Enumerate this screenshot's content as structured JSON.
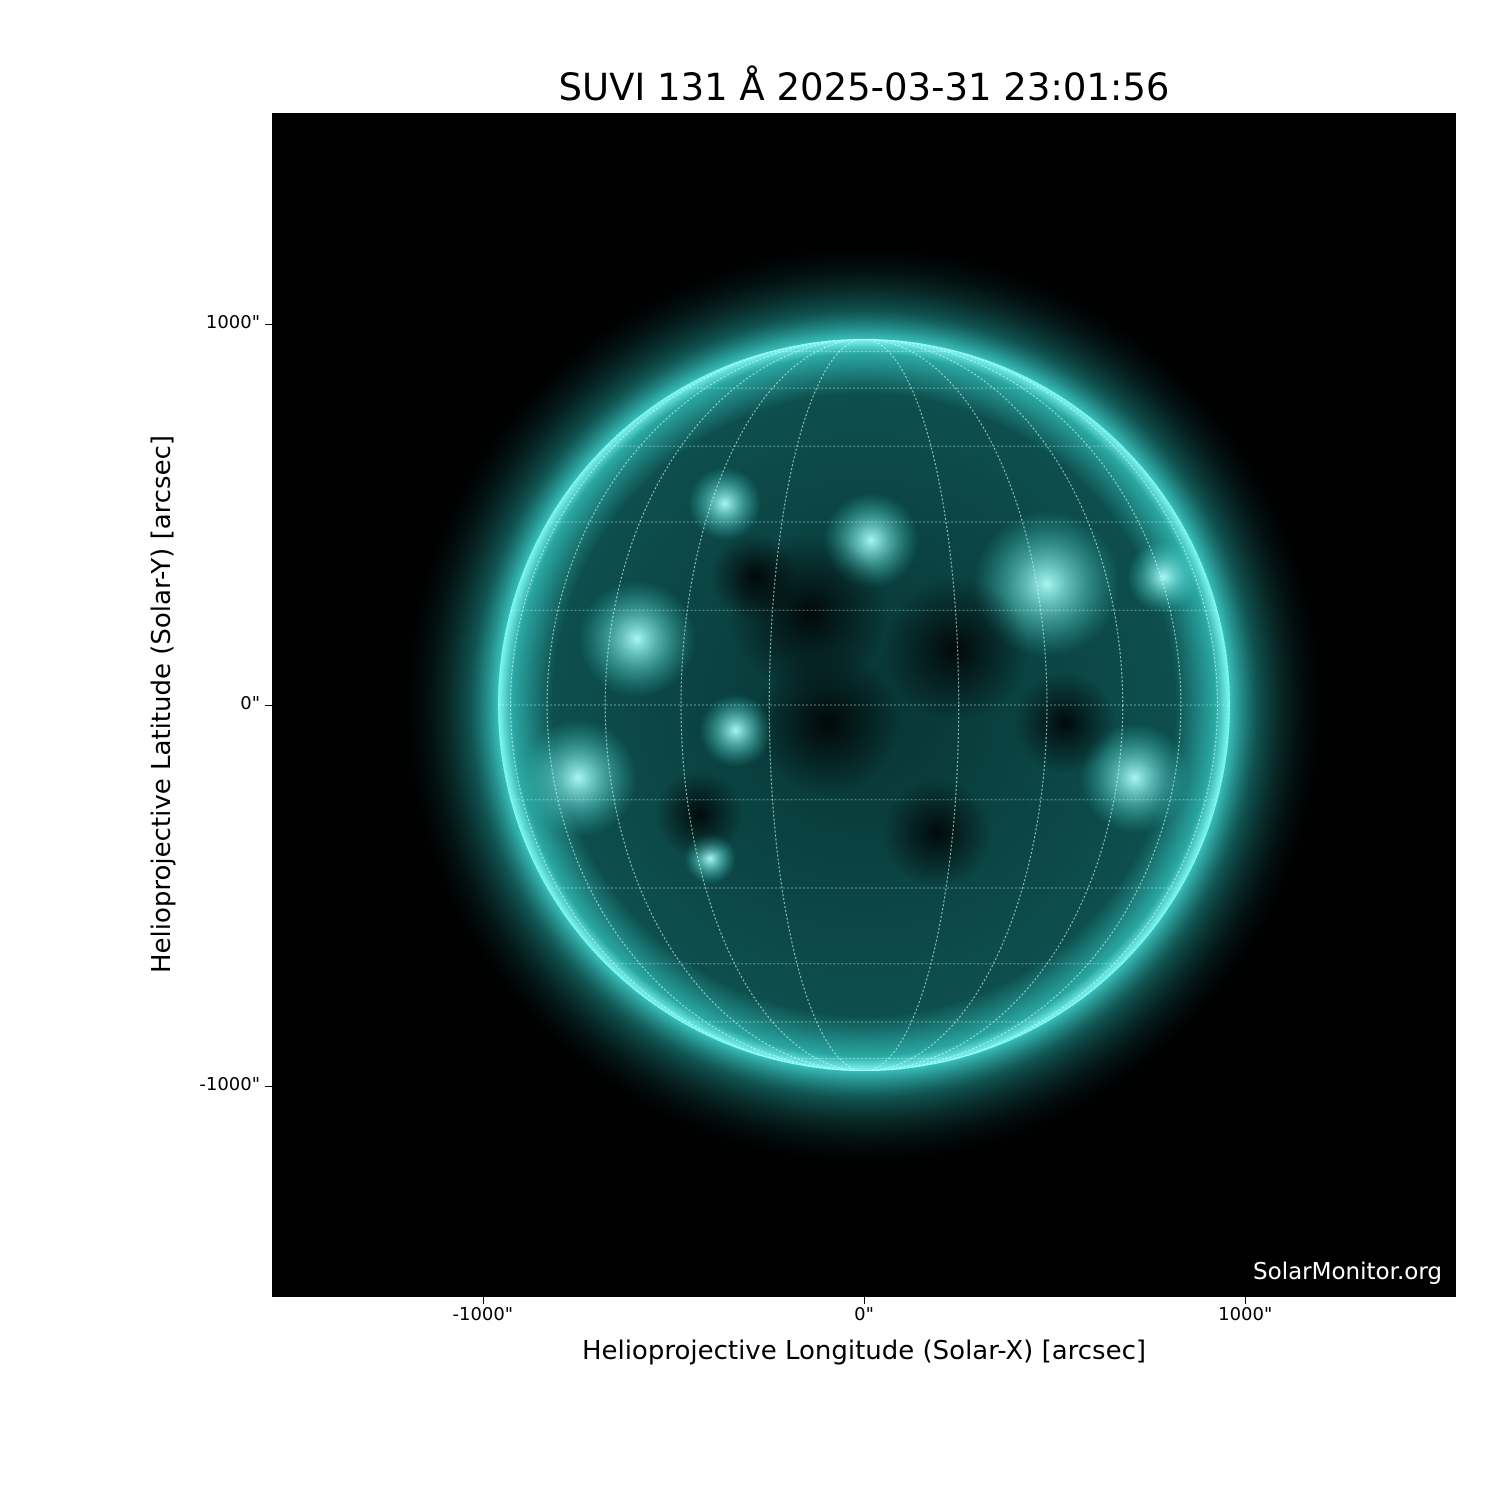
{
  "chart_data": {
    "type": "heatmap",
    "title": "SUVI 131 Å 2025-03-31 23:01:56",
    "xlabel": "Helioprojective Longitude (Solar-X) [arcsec]",
    "ylabel": "Helioprojective Latitude (Solar-Y) [arcsec]",
    "xlim": [
      -1553,
      1553
    ],
    "ylim": [
      -1553,
      1553
    ],
    "xticks": [
      {
        "value": -1000,
        "label": "-1000\""
      },
      {
        "value": 0,
        "label": "0\""
      },
      {
        "value": 1000,
        "label": "1000\""
      }
    ],
    "yticks": [
      {
        "value": 1000,
        "label": "1000\""
      },
      {
        "value": 0,
        "label": "0\""
      },
      {
        "value": -1000,
        "label": "-1000\""
      }
    ],
    "solar_radius_arcsec": 960,
    "heliographic_grid_spacing_deg": 15,
    "colormap": "black-to-cyan",
    "colors": {
      "background": "#000000",
      "disk": "#0b4a4a",
      "limb": "#5ff5f0",
      "active": "#9ffffb"
    },
    "grid": true
  },
  "watermark": "SolarMonitor.org"
}
